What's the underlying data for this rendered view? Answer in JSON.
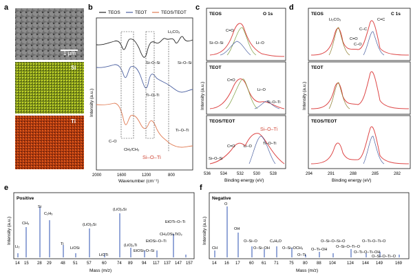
{
  "panel_letters": {
    "a": "a",
    "b": "b",
    "c": "c",
    "d": "d",
    "e": "e",
    "f": "f"
  },
  "panel_a": {
    "scalebar": "1 μm",
    "map1_label": "Si",
    "map2_label": "Ti"
  },
  "panel_b": {
    "legend": [
      "TEOS",
      "TEOT",
      "TEOS/TEOT"
    ],
    "legend_colors": [
      "#222222",
      "#4a5fa0",
      "#e07a52"
    ],
    "ylabel": "Intensity (a.u.)",
    "xlabel": "Wavenumber (cm⁻¹)",
    "xticks": [
      "2000",
      "1600",
      "1200",
      "800"
    ],
    "annotations": {
      "li2co3": "Li₂CO₃",
      "siosi_1": "Si–O–Si",
      "siosi_2": "Si–O–Si",
      "tioti_1": "Ti–O–Ti",
      "tioti_2": "Ti–O–Ti",
      "co": "C–O",
      "ch": "CH₂/CH₃",
      "siot": "Si–O–Ti"
    }
  },
  "panel_c": {
    "header": "O 1s",
    "xticks": [
      "536",
      "534",
      "532",
      "530",
      "528"
    ],
    "xlabel": "Binding energy (eV)",
    "ylabel": "Intensity (a.u.)",
    "subpanels": [
      {
        "title": "TEOS",
        "peaks": [
          "C=O",
          "Li–O",
          "Si–O–Si"
        ]
      },
      {
        "title": "TEOT",
        "peaks": [
          "C=O",
          "Li–O",
          "Ti–O–Ti"
        ]
      },
      {
        "title": "TEOS/TEOT",
        "peaks": [
          "Si–O–Ti",
          "C=O",
          "Li–O",
          "Ti–O–Ti",
          "Si–O–Si"
        ]
      }
    ]
  },
  "panel_d": {
    "header": "C 1s",
    "xticks": [
      "294",
      "291",
      "288",
      "285",
      "282"
    ],
    "xlabel": "Binding energy (eV)",
    "ylabel": "Intensity (a.u.)",
    "subpanels": [
      {
        "title": "TEOS",
        "peaks": [
          "Li₂CO₃",
          "C=O",
          "C–O",
          "C–C",
          "C=C"
        ]
      },
      {
        "title": "TEOT"
      },
      {
        "title": "TEOS/TEOT"
      }
    ]
  },
  "panel_e": {
    "title": "Positive",
    "xlabel": "Mass (m/z)",
    "ylabel": "Intensity (a.u.)",
    "xticks": [
      "14",
      "15",
      "28",
      "29",
      "48",
      "51",
      "57",
      "60",
      "74",
      "89",
      "94",
      "117",
      "137",
      "147",
      "157"
    ],
    "labels": {
      "li2": "Li₂",
      "ch3": "CH₃",
      "si": "Si",
      "c2h5": "C₂H₅",
      "ti": "Ti",
      "liosi": "LiOSi",
      "lio3si": "(LiO)₃Si",
      "lioti": "LiOTi",
      "lio4si": "(LiO)₄Si",
      "lio3ti": "(LiO)₃Ti",
      "etoti": "EtOTi–O–Ti",
      "ch3osi": "CH₃OSi₂TiO₂",
      "etosio": "EtOSi–O–Ti",
      "etoosi": "EtOSi–O–Si"
    }
  },
  "panel_f": {
    "title": "Negative",
    "xlabel": "Mass (m/z)",
    "ylabel": "Intensity (a.u.)",
    "xticks": [
      "14",
      "16",
      "17",
      "60",
      "61",
      "71",
      "75",
      "80",
      "88",
      "104",
      "124",
      "144",
      "149",
      "169"
    ],
    "labels": {
      "ch": "CH",
      "o": "O",
      "oh": "OH",
      "osio": "O–Si–O",
      "osioh": "O–Si–OH",
      "c4h5o": "C₄H₅O",
      "osioch3": "O–Si–OCH₃",
      "oti": "O–Ti",
      "otioh": "O–Ti–OH",
      "osiosio": "O–Si–O–Si–O",
      "osiotio": "O–Si–O–Ti–O",
      "otiotio": "O–Ti–O–Ti–O",
      "otiotioh": "O–Ti–O–Ti–OH",
      "ooooh": "O–Si–O–Ti–O"
    }
  }
}
